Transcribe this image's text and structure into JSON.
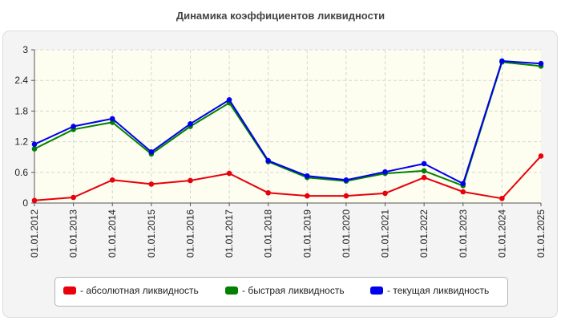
{
  "title": "Динамика коэффициентов ликвидности",
  "colors": {
    "background": "#f4f4f4",
    "plot_band": "#fdfdf0",
    "grid": "#d6d6d6"
  },
  "chart_data": {
    "type": "line",
    "title": "Динамика коэффициентов ликвидности",
    "xlabel": "",
    "ylabel": "",
    "categories": [
      "01.01.2012",
      "01.01.2013",
      "01.01.2014",
      "01.01.2015",
      "01.01.2016",
      "01.01.2017",
      "01.01.2018",
      "01.01.2019",
      "01.01.2020",
      "01.01.2021",
      "01.01.2022",
      "01.01.2023",
      "01.01.2024",
      "01.01.2025"
    ],
    "ylim": [
      0,
      3
    ],
    "yticks": [
      "0",
      "0.6",
      "1.2",
      "1.8",
      "2.4",
      "3"
    ],
    "ytick_values": [
      0,
      0.6,
      1.2,
      1.8,
      2.4,
      3
    ],
    "grid": true,
    "legend_position": "bottom",
    "series": [
      {
        "name": "- абсолютная ликвидность",
        "color": "#e8000b",
        "values": [
          0.05,
          0.11,
          0.45,
          0.37,
          0.44,
          0.58,
          0.2,
          0.14,
          0.14,
          0.19,
          0.5,
          0.22,
          0.09,
          0.92
        ]
      },
      {
        "name": "- быстрая ликвидность",
        "color": "#008000",
        "values": [
          1.06,
          1.44,
          1.58,
          0.96,
          1.5,
          1.96,
          0.81,
          0.5,
          0.43,
          0.58,
          0.63,
          0.34,
          2.76,
          2.68
        ]
      },
      {
        "name": "- текущая ликвидность",
        "color": "#0000ee",
        "values": [
          1.15,
          1.5,
          1.65,
          1.0,
          1.55,
          2.02,
          0.83,
          0.53,
          0.45,
          0.61,
          0.77,
          0.38,
          2.78,
          2.73
        ]
      }
    ]
  }
}
